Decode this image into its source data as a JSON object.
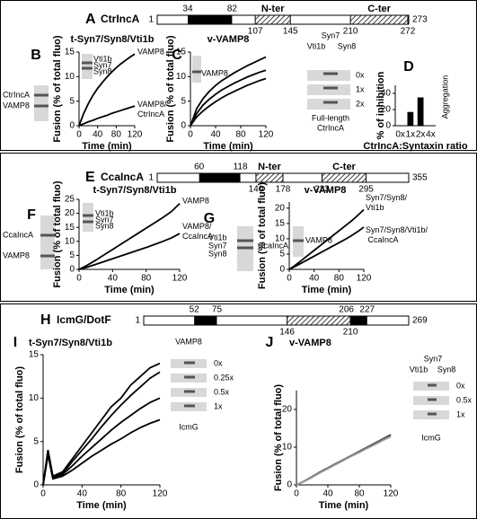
{
  "chart_data": [
    {
      "panel": "B",
      "type": "line",
      "title": "t-Syn7/Syn8/Vti1b",
      "x_label": "Time (min)",
      "y_label": "Fusion (% of total fluo)",
      "x": [
        0,
        10,
        20,
        30,
        40,
        50,
        60,
        70,
        80,
        90,
        100,
        110,
        120
      ],
      "xlim": [
        0,
        120
      ],
      "xticks": [
        0,
        40,
        80,
        120
      ],
      "ylim": [
        0,
        15
      ],
      "yticks": [
        0,
        5,
        10,
        15
      ],
      "series": [
        {
          "name": "VAMP8",
          "color": "#000000",
          "values": [
            0,
            2.5,
            4.5,
            6.2,
            7.6,
            8.8,
            9.9,
            10.9,
            11.8,
            12.6,
            13.3,
            14.0,
            14.6
          ]
        },
        {
          "name": "VAMP8/CtrIncA",
          "color": "#000000",
          "values": [
            0,
            0.4,
            0.8,
            1.1,
            1.5,
            1.8,
            2.1,
            2.5,
            2.8,
            3.1,
            3.4,
            3.7,
            4.0
          ]
        }
      ],
      "annotations": [
        "Vti1b",
        "Syn7",
        "Syn8",
        "CtrIncA",
        "VAMP8"
      ]
    },
    {
      "panel": "C",
      "type": "line",
      "title": "v-VAMP8",
      "x_label": "Time (min)",
      "y_label": "Fusion (% of total fluo)",
      "x": [
        0,
        10,
        20,
        30,
        40,
        50,
        60,
        70,
        80,
        90,
        100,
        110,
        120
      ],
      "xlim": [
        0,
        120
      ],
      "xticks": [
        0,
        40,
        80,
        120
      ],
      "ylim": [
        0,
        15
      ],
      "yticks": [
        0,
        5,
        10,
        15
      ],
      "series": [
        {
          "name": "0x",
          "color": "#000000",
          "values": [
            0,
            3.5,
            5.5,
            7.0,
            8.2,
            9.2,
            10.0,
            10.8,
            11.5,
            12.2,
            12.8,
            13.4,
            14.0
          ]
        },
        {
          "name": "1x",
          "color": "#000000",
          "values": [
            0,
            2.5,
            4.2,
            5.4,
            6.4,
            7.3,
            8.0,
            8.7,
            9.3,
            9.9,
            10.4,
            10.9,
            11.3
          ]
        },
        {
          "name": "2x",
          "color": "#000000",
          "values": [
            0,
            1.8,
            3.0,
            4.0,
            4.9,
            5.7,
            6.4,
            7.0,
            7.6,
            8.2,
            8.7,
            9.2,
            9.6
          ]
        }
      ],
      "annotations": [
        "VAMP8",
        "Syn7",
        "Vti1b",
        "Syn8",
        "Full-length",
        "CtrIncA"
      ]
    },
    {
      "panel": "D",
      "type": "bar",
      "y_label": "% of inhibition",
      "x_label": "CtrIncA:Syntaxin ratio",
      "categories": [
        "0x",
        "1x",
        "2x",
        "4x"
      ],
      "values": [
        0,
        17,
        35,
        null
      ],
      "color": "#000000",
      "ylim": [
        0,
        50
      ],
      "yticks": [
        0,
        20,
        40
      ],
      "annotations": [
        "Aggregation"
      ]
    },
    {
      "panel": "F",
      "type": "line",
      "title": "t-Syn7/Syn8/Vti1b",
      "x_label": "Time (min)",
      "y_label": "Fusion (% of total fluo)",
      "x": [
        0,
        10,
        20,
        30,
        40,
        50,
        60,
        70,
        80,
        90,
        100,
        110,
        120
      ],
      "xlim": [
        0,
        120
      ],
      "xticks": [
        0,
        40,
        80,
        120
      ],
      "ylim": [
        0,
        25
      ],
      "yticks": [
        0,
        5,
        10,
        15,
        20,
        25
      ],
      "series": [
        {
          "name": "VAMP8",
          "color": "#000000",
          "values": [
            0,
            1.5,
            3.3,
            5.2,
            7.1,
            9.0,
            10.9,
            12.8,
            14.7,
            16.6,
            18.5,
            20.6,
            23.5
          ]
        },
        {
          "name": "VAMP8/CcaIncA",
          "color": "#000000",
          "values": [
            0,
            0.8,
            1.8,
            2.8,
            3.8,
            4.8,
            5.8,
            6.8,
            7.8,
            8.9,
            10.0,
            11.2,
            12.8
          ]
        }
      ],
      "annotations": [
        "CcaIncA",
        "VAMP8",
        "Vti1b",
        "Syn7",
        "Syn8"
      ]
    },
    {
      "panel": "G",
      "type": "line",
      "title": "v-VAMP8",
      "x_label": "Time (min)",
      "y_label": "Fusion (% of total fluo)",
      "x": [
        0,
        10,
        20,
        30,
        40,
        50,
        60,
        70,
        80,
        90,
        100,
        110,
        120
      ],
      "xlim": [
        0,
        120
      ],
      "xticks": [
        0,
        40,
        80,
        120
      ],
      "ylim": [
        0,
        22
      ],
      "yticks": [
        0,
        5,
        10,
        15,
        20
      ],
      "series": [
        {
          "name": "Syn7/Syn8/Vti1b",
          "color": "#000000",
          "values": [
            0,
            1.4,
            3.0,
            4.6,
            6.2,
            7.8,
            9.4,
            11.0,
            12.6,
            14.2,
            15.8,
            17.6,
            19.5
          ]
        },
        {
          "name": "Syn7/Syn8/Vti1b/ CcaIncA",
          "color": "#000000",
          "values": [
            0,
            1.0,
            2.1,
            3.2,
            4.3,
            5.4,
            6.5,
            7.6,
            8.7,
            9.8,
            11.0,
            12.3,
            13.8
          ]
        }
      ],
      "annotations": [
        "Vti1b",
        "Syn7",
        "Syn8",
        "CcaIncA",
        "VAMP8"
      ]
    },
    {
      "panel": "I",
      "type": "line",
      "title": "t-Syn7/Syn8/Vti1b",
      "x_label": "Time (min)",
      "y_label": "Fusion (% of total fluo)",
      "x": [
        0,
        5,
        10,
        20,
        30,
        40,
        50,
        60,
        70,
        80,
        90,
        100,
        110,
        120
      ],
      "xlim": [
        0,
        120
      ],
      "xticks": [
        0,
        40,
        80,
        120
      ],
      "ylim": [
        0,
        15
      ],
      "yticks": [
        0,
        5,
        10,
        15
      ],
      "series": [
        {
          "name": "0x",
          "color": "#000000",
          "values": [
            0,
            4,
            1,
            1.5,
            3,
            4.5,
            6,
            7.5,
            9,
            10,
            11.5,
            12.5,
            13.5,
            14
          ]
        },
        {
          "name": "0.25x",
          "color": "#000000",
          "values": [
            0,
            4,
            1,
            1.3,
            2.7,
            4,
            5.3,
            6.7,
            8,
            9.2,
            10.3,
            11.3,
            12.3,
            13
          ]
        },
        {
          "name": "0.5x",
          "color": "#000000",
          "values": [
            0,
            3.5,
            0.8,
            1.2,
            2.2,
            3.3,
            4.3,
            5.3,
            6.3,
            7.2,
            8,
            8.8,
            9.5,
            10
          ]
        },
        {
          "name": "1x",
          "color": "#000000",
          "values": [
            0,
            3.5,
            0.7,
            1,
            1.7,
            2.5,
            3.3,
            4,
            4.7,
            5.3,
            6,
            6.6,
            7.1,
            7.5
          ]
        }
      ],
      "annotations": [
        "VAMP8",
        "IcmG"
      ]
    },
    {
      "panel": "J",
      "type": "line",
      "title": "v-VAMP8",
      "x_label": "Time (min)",
      "y_label": "Fusion (% of total fluo)",
      "x": [
        0,
        10,
        20,
        30,
        40,
        50,
        60,
        70,
        80,
        90,
        100,
        110,
        120
      ],
      "xlim": [
        0,
        120
      ],
      "xticks": [
        0,
        40,
        80,
        120
      ],
      "ylim": [
        0,
        25
      ],
      "yticks": [
        0,
        10,
        20
      ],
      "series": [
        {
          "name": "0x",
          "color": "#333333",
          "values": [
            0,
            1,
            2.2,
            3.4,
            4.5,
            5.6,
            6.7,
            7.8,
            8.9,
            10,
            11.1,
            12.2,
            13.3
          ]
        },
        {
          "name": "0.5x",
          "color": "#666666",
          "values": [
            0,
            1,
            2.1,
            3.3,
            4.4,
            5.5,
            6.6,
            7.7,
            8.8,
            9.8,
            10.9,
            12,
            13
          ]
        },
        {
          "name": "1x",
          "color": "#999999",
          "values": [
            0,
            0.9,
            2,
            3.2,
            4.3,
            5.4,
            6.5,
            7.6,
            8.6,
            9.7,
            10.7,
            11.8,
            12.8
          ]
        }
      ],
      "annotations": [
        "Syn7",
        "Vti1b",
        "Syn8",
        "IcmG"
      ]
    }
  ],
  "diagrams": [
    {
      "letter": "A",
      "name": "CtrIncA",
      "start": 1,
      "end": 273,
      "tm": [
        [
          34,
          82
        ]
      ],
      "regions": [
        {
          "label": "N-ter",
          "range": [
            107,
            145
          ]
        },
        {
          "label": "C-ter",
          "range": [
            210,
            272
          ]
        }
      ]
    },
    {
      "letter": "E",
      "name": "CcaIncA",
      "start": 1,
      "end": 355,
      "tm": [
        [
          60,
          118
        ]
      ],
      "regions": [
        {
          "label": "N-ter",
          "range": [
            140,
            178
          ]
        },
        {
          "label": "C-ter",
          "range": [
            233,
            295
          ]
        }
      ]
    },
    {
      "letter": "H",
      "name": "IcmG/DotF",
      "start": 1,
      "end": 269,
      "tm": [
        [
          52,
          75
        ],
        [
          206,
          227
        ]
      ],
      "regions": [
        {
          "range": [
            146,
            210
          ]
        }
      ]
    }
  ]
}
